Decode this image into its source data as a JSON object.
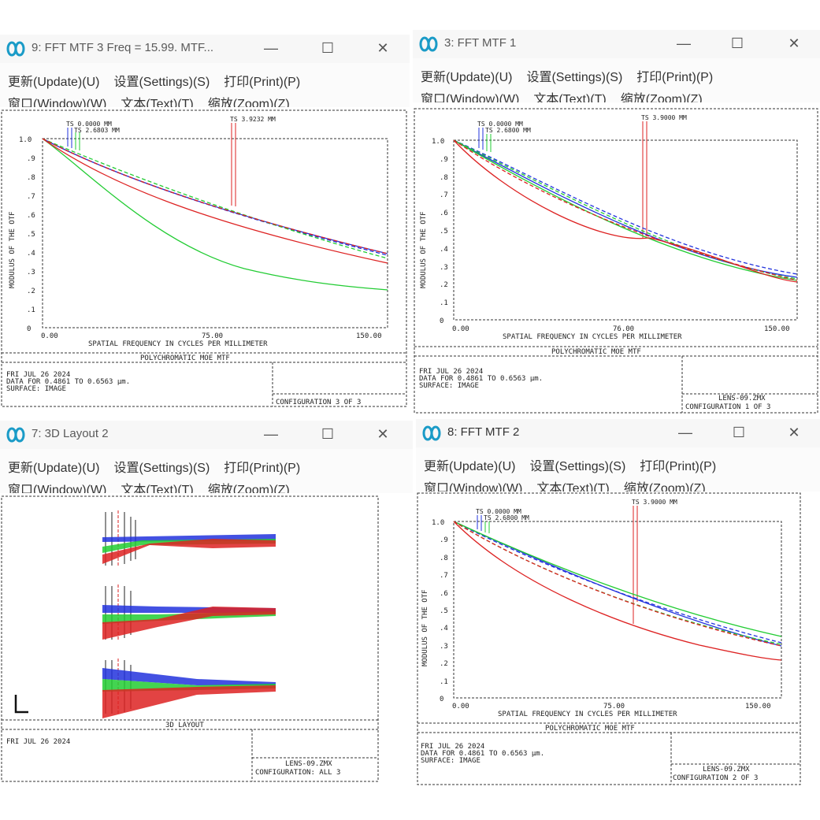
{
  "windows": {
    "w9": {
      "title": "9: FFT MTF 3 Freq = 15.99. MTF...",
      "menus": [
        "更新(Update)(U)",
        "设置(Settings)(S)",
        "打印(Print)(P)",
        "窗口(Window)(W)",
        "文本(Text)(T)",
        "缩放(Zoom)(Z)"
      ],
      "plot": {
        "ylabel": "MODULUS OF THE OTF",
        "xlabel": "SPATIAL FREQUENCY IN CYCLES PER MILLIMETER",
        "yticks": [
          "1.0",
          ".9",
          ".8",
          ".7",
          ".6",
          ".5",
          ".4",
          ".3",
          ".2",
          ".1",
          "0"
        ],
        "xticks": [
          "0.00",
          "75.00",
          "150.00"
        ],
        "ts_labels": [
          "TS 0.0000 MM",
          "TS 2.6803 MM",
          "TS 3.9232 MM"
        ],
        "footer_title": "POLYCHROMATIC MOE  MTF",
        "date": "FRI JUL 26 2024",
        "data_line": "DATA FOR 0.4861 TO 0.6563 µm.",
        "surface": "SURFACE: IMAGE",
        "lens": "",
        "config": "CONFIGURATION 3 OF 3"
      }
    },
    "w3": {
      "title": "3: FFT MTF 1",
      "menus": [
        "更新(Update)(U)",
        "设置(Settings)(S)",
        "打印(Print)(P)",
        "窗口(Window)(W)",
        "文本(Text)(T)",
        "缩放(Zoom)(Z)"
      ],
      "plot": {
        "ylabel": "MODULUS OF THE OTF",
        "xlabel": "SPATIAL FREQUENCY IN CYCLES PER MILLIMETER",
        "yticks": [
          "1.0",
          ".9",
          ".8",
          ".7",
          ".6",
          ".5",
          ".4",
          ".3",
          ".2",
          ".1",
          "0"
        ],
        "xticks": [
          "0.00",
          "76.00",
          "150.00"
        ],
        "ts_labels": [
          "TS 0.0000 MM",
          "TS 2.6800 MM",
          "TS 3.9000 MM"
        ],
        "footer_title": "POLYCHROMATIC MOE  MTF",
        "date": "FRI JUL 26 2024",
        "data_line": "DATA FOR 0.4861 TO 0.6563 µm.",
        "surface": "SURFACE: IMAGE",
        "lens": "LENS-09.ZMX",
        "config": "CONFIGURATION 1 OF 3"
      }
    },
    "w7": {
      "title": "7: 3D Layout 2",
      "menus": [
        "更新(Update)(U)",
        "设置(Settings)(S)",
        "打印(Print)(P)",
        "窗口(Window)(W)",
        "文本(Text)(T)",
        "缩放(Zoom)(Z)"
      ],
      "layout": {
        "footer_title": "3D LAYOUT",
        "date": "FRI JUL 26 2024",
        "lens": "LENS-09.ZMX",
        "config": "CONFIGURATION: ALL 3"
      }
    },
    "w8": {
      "title": "8: FFT MTF 2",
      "menus": [
        "更新(Update)(U)",
        "设置(Settings)(S)",
        "打印(Print)(P)",
        "窗口(Window)(W)",
        "文本(Text)(T)",
        "缩放(Zoom)(Z)"
      ],
      "plot": {
        "ylabel": "MODULUS OF THE OTF",
        "xlabel": "SPATIAL FREQUENCY IN CYCLES PER MILLIMETER",
        "yticks": [
          "1.0",
          ".9",
          ".8",
          ".7",
          ".6",
          ".5",
          ".4",
          ".3",
          ".2",
          ".1",
          "0"
        ],
        "xticks": [
          "0.00",
          "75.00",
          "150.00"
        ],
        "ts_labels": [
          "TS 0.0000 MM",
          "TS 2.6800 MM",
          "TS 3.9000 MM"
        ],
        "footer_title": "POLYCHROMATIC MOE  MTF",
        "date": "FRI JUL 26 2024",
        "data_line": "DATA FOR 0.4861 TO 0.6563 µm.",
        "surface": "SURFACE: IMAGE",
        "lens": "LENS-09.ZMX",
        "config": "CONFIGURATION 2 OF 3"
      }
    }
  },
  "window_buttons": {
    "minimize": "—",
    "maximize": "☐",
    "close": "✕"
  },
  "colors": {
    "blue": "#2233dd",
    "green": "#22cc33",
    "red": "#dd2222",
    "frame": "#333333"
  }
}
